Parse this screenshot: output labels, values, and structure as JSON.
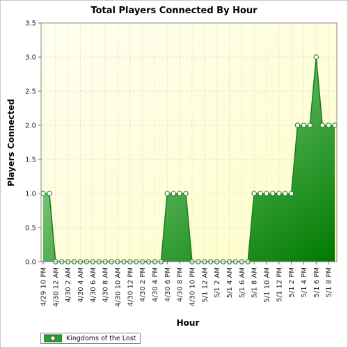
{
  "chart_data": {
    "type": "area",
    "title": "Total Players Connected By Hour",
    "xlabel": "Hour",
    "ylabel": "Players Connected",
    "ylim": [
      0,
      3.5
    ],
    "yticks": [
      "0.0",
      "0.5",
      "1.0",
      "1.5",
      "2.0",
      "2.5",
      "3.0",
      "3.5"
    ],
    "x_tick_labels": [
      "4/29 10 PM",
      "4/30 12 AM",
      "4/30 2 AM",
      "4/30 4 AM",
      "4/30 6 AM",
      "4/30 8 AM",
      "4/30 10 AM",
      "4/30 12 PM",
      "4/30 2 PM",
      "4/30 4 PM",
      "4/30 6 PM",
      "4/30 8 PM",
      "4/30 10 PM",
      "5/1 12 AM",
      "5/1 2 AM",
      "5/1 4 AM",
      "5/1 6 AM",
      "5/1 8 AM",
      "5/1 10 AM",
      "5/1 12 PM",
      "5/1 2 PM",
      "5/1 4 PM",
      "5/1 6 PM",
      "5/1 8 PM"
    ],
    "grid": true,
    "legend_position": "bottom-left",
    "series": [
      {
        "name": "Kingdoms of the Lost",
        "color": "#1a8a1a",
        "values": [
          1,
          1,
          0,
          0,
          0,
          0,
          0,
          0,
          0,
          0,
          0,
          0,
          0,
          0,
          0,
          0,
          0,
          0,
          0,
          0,
          1,
          1,
          1,
          1,
          0,
          0,
          0,
          0,
          0,
          0,
          0,
          0,
          0,
          0,
          1,
          1,
          1,
          1,
          1,
          1,
          1,
          2,
          2,
          2,
          3,
          2,
          2,
          2
        ]
      }
    ]
  }
}
